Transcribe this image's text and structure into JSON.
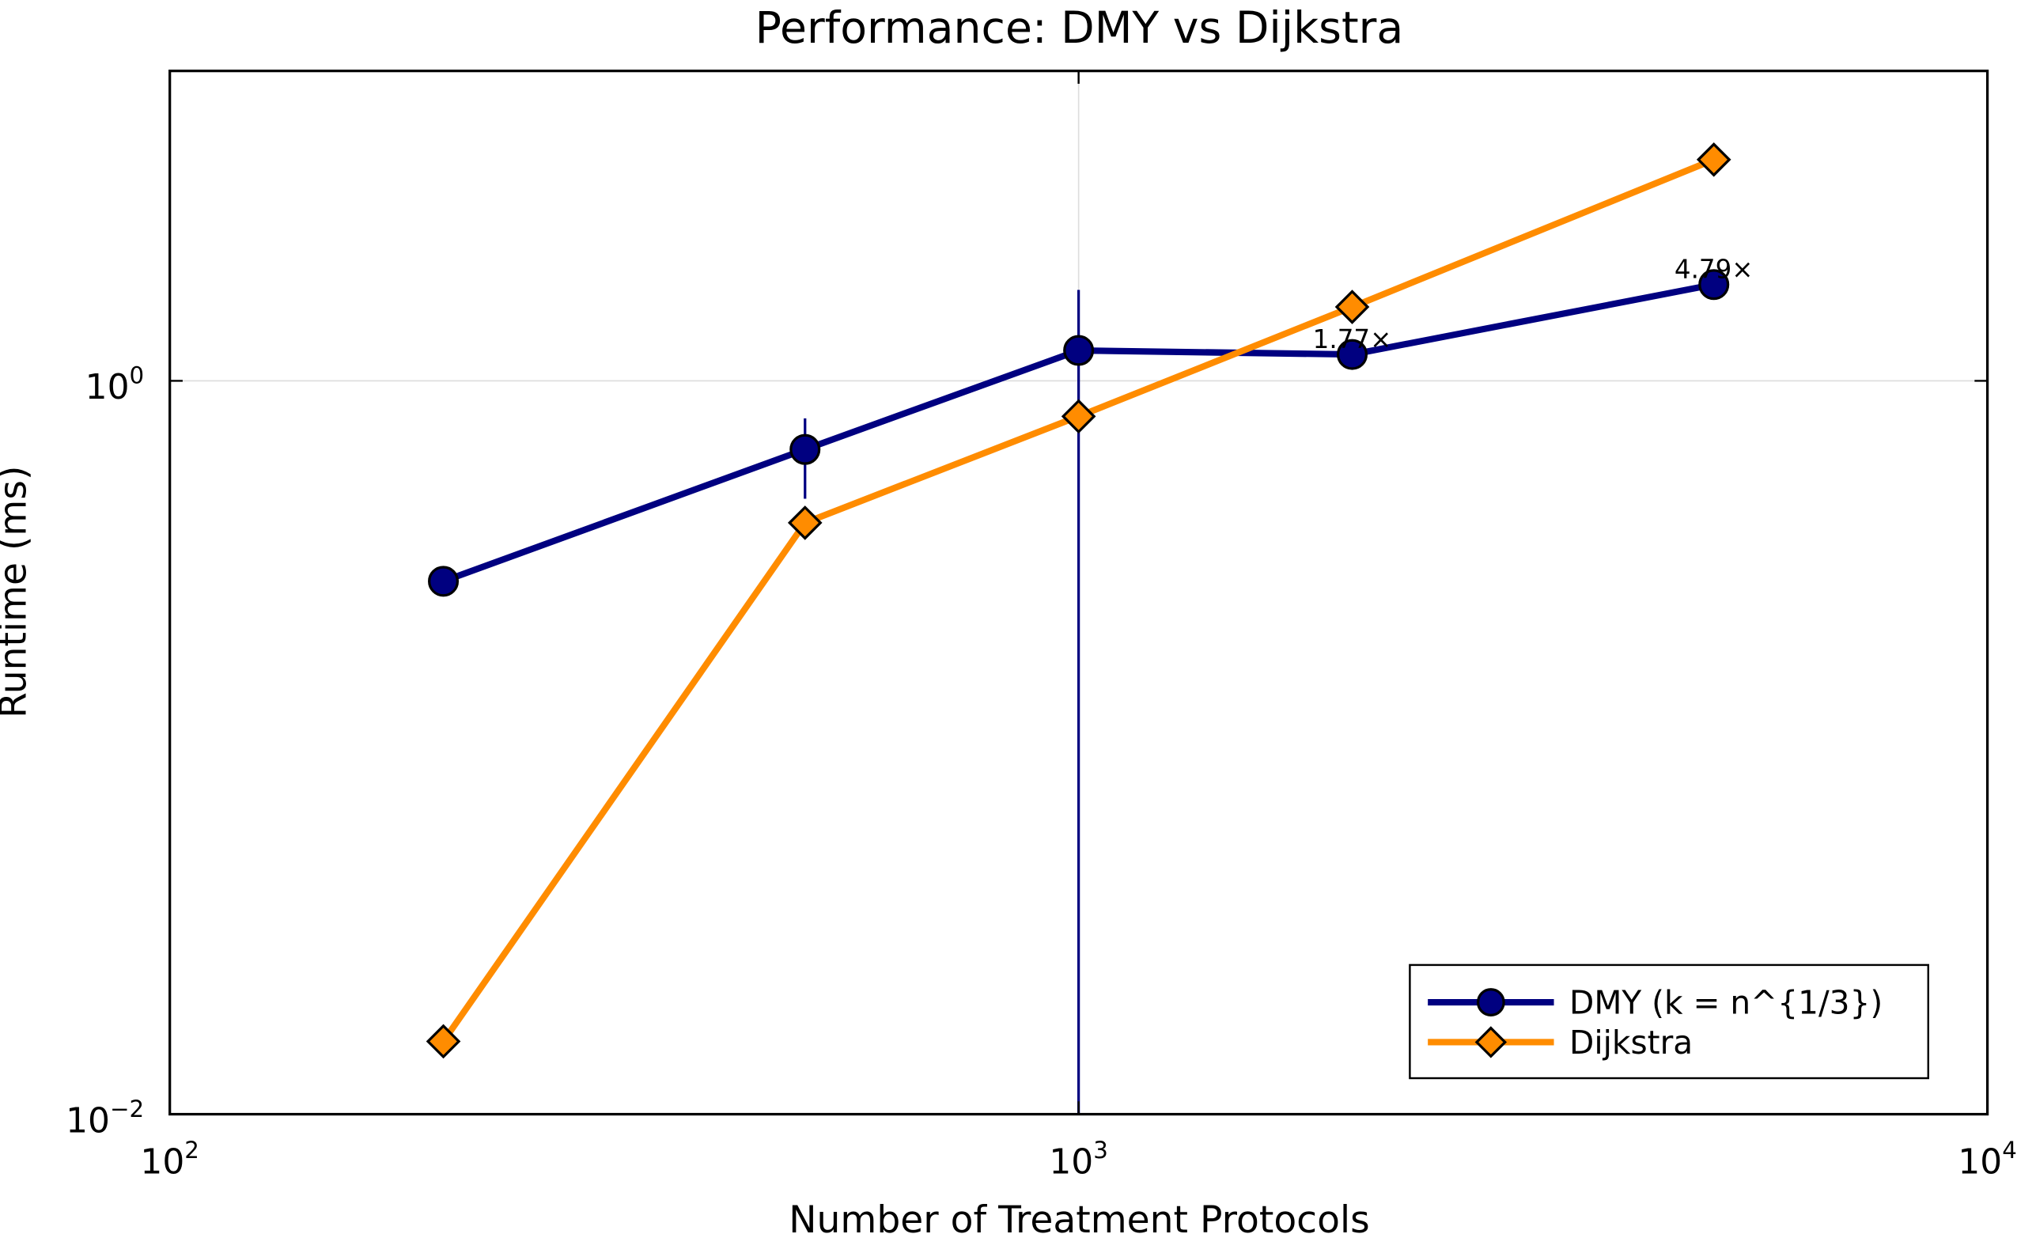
{
  "chart_data": {
    "type": "line",
    "title": "Performance: DMY vs Dijkstra",
    "xlabel": "Number of Treatment Protocols",
    "ylabel": "Runtime (ms)",
    "xscale": "log",
    "yscale": "log",
    "xlim": [
      100,
      10000
    ],
    "ylim": [
      0.01,
      7.0
    ],
    "xticks": [
      {
        "value": 100,
        "base": "10",
        "exp": "2"
      },
      {
        "value": 1000,
        "base": "10",
        "exp": "3"
      },
      {
        "value": 10000,
        "base": "10",
        "exp": "4"
      }
    ],
    "yticks": [
      {
        "value": 0.01,
        "base": "10",
        "exp": "−2"
      },
      {
        "value": 1,
        "base": "10",
        "exp": "0"
      }
    ],
    "grid": true,
    "legend_position": "bottom-right",
    "series": [
      {
        "name": "DMY (k = n^{1/3})",
        "color": "#000080",
        "marker": "circle",
        "x": [
          200,
          500,
          1000,
          2000,
          5000
        ],
        "y": [
          0.284,
          0.65,
          1.21,
          1.18,
          1.83
        ],
        "error_bars": [
          {
            "x": 500,
            "low": 0.477,
            "high": 0.79
          },
          {
            "x": 1000,
            "low": 0.01,
            "high": 1.77
          }
        ]
      },
      {
        "name": "Dijkstra",
        "color": "#FF8C00",
        "marker": "diamond",
        "x": [
          200,
          500,
          1000,
          2000,
          5000
        ],
        "y": [
          0.0158,
          0.41,
          0.8,
          1.59,
          4.01
        ]
      }
    ],
    "annotations": [
      {
        "text": "1.77×",
        "x": 2000,
        "y": 1.18
      },
      {
        "text": "4.79×",
        "x": 5000,
        "y": 1.83
      }
    ]
  }
}
